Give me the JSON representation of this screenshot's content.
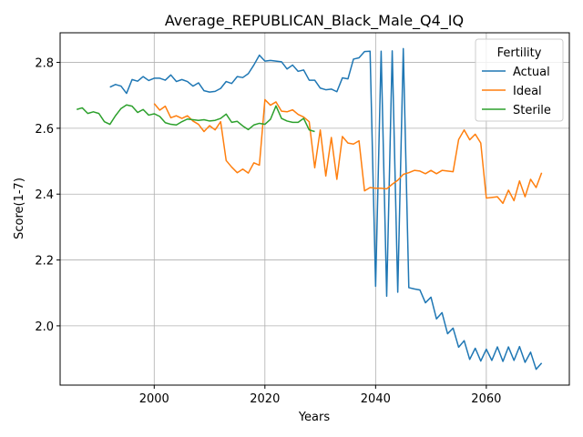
{
  "chart_data": {
    "type": "line",
    "title": "Average_REPUBLICAN_Black_Male_Q4_IQ",
    "xlabel": "Years",
    "ylabel": "Score(1-7)",
    "xlim": [
      1983,
      2075
    ],
    "ylim": [
      1.82,
      2.89
    ],
    "xticks": [
      2000,
      2020,
      2040,
      2060
    ],
    "yticks": [
      2.0,
      2.2,
      2.4,
      2.6,
      2.8
    ],
    "ytick_labels": [
      "2.0",
      "2.2",
      "2.4",
      "2.6",
      "2.8"
    ],
    "grid": true,
    "legend": {
      "title": "Fertility",
      "position": "top-right"
    },
    "series": [
      {
        "name": "Actual",
        "color": "#1f77b4",
        "x": [
          1992,
          1993,
          1994,
          1995,
          1996,
          1997,
          1998,
          1999,
          2000,
          2001,
          2002,
          2003,
          2004,
          2005,
          2006,
          2007,
          2008,
          2009,
          2010,
          2011,
          2012,
          2013,
          2014,
          2015,
          2016,
          2017,
          2018,
          2019,
          2020,
          2021,
          2022,
          2023,
          2024,
          2025,
          2026,
          2027,
          2028,
          2029,
          2030,
          2031,
          2032,
          2033,
          2034,
          2035,
          2036,
          2037,
          2038,
          2039,
          2040,
          2041,
          2042,
          2043,
          2044,
          2045,
          2046,
          2047,
          2048,
          2049,
          2050,
          2051,
          2052,
          2053,
          2054,
          2055,
          2056,
          2057,
          2058,
          2059,
          2060,
          2061,
          2062,
          2063,
          2064,
          2065,
          2066,
          2067,
          2068,
          2069,
          2070
        ],
        "values": [
          2.725,
          2.733,
          2.728,
          2.706,
          2.748,
          2.743,
          2.757,
          2.745,
          2.752,
          2.752,
          2.746,
          2.762,
          2.742,
          2.748,
          2.742,
          2.728,
          2.738,
          2.714,
          2.71,
          2.712,
          2.721,
          2.742,
          2.736,
          2.757,
          2.754,
          2.766,
          2.792,
          2.822,
          2.804,
          2.806,
          2.804,
          2.802,
          2.78,
          2.792,
          2.773,
          2.777,
          2.746,
          2.746,
          2.722,
          2.717,
          2.719,
          2.711,
          2.753,
          2.75,
          2.81,
          2.814,
          2.833,
          2.834,
          2.12,
          2.834,
          2.09,
          2.835,
          2.102,
          2.842,
          2.116,
          2.112,
          2.109,
          2.07,
          2.087,
          2.021,
          2.04,
          1.976,
          1.993,
          1.935,
          1.955,
          1.898,
          1.932,
          1.893,
          1.929,
          1.895,
          1.936,
          1.892,
          1.936,
          1.895,
          1.937,
          1.889,
          1.92,
          1.868,
          1.887
        ]
      },
      {
        "name": "Ideal",
        "color": "#ff7f0e",
        "x": [
          2000,
          2001,
          2002,
          2003,
          2004,
          2005,
          2006,
          2007,
          2008,
          2009,
          2010,
          2011,
          2012,
          2013,
          2014,
          2015,
          2016,
          2017,
          2018,
          2019,
          2020,
          2021,
          2022,
          2023,
          2024,
          2025,
          2026,
          2027,
          2028,
          2029,
          2030,
          2031,
          2032,
          2033,
          2034,
          2035,
          2036,
          2037,
          2038,
          2039,
          2040,
          2041,
          2042,
          2043,
          2044,
          2045,
          2046,
          2047,
          2048,
          2049,
          2050,
          2051,
          2052,
          2053,
          2054,
          2055,
          2056,
          2057,
          2058,
          2059,
          2060,
          2061,
          2062,
          2063,
          2064,
          2065,
          2066,
          2067,
          2068,
          2069,
          2070
        ],
        "values": [
          2.675,
          2.655,
          2.667,
          2.632,
          2.638,
          2.63,
          2.638,
          2.622,
          2.612,
          2.59,
          2.608,
          2.595,
          2.62,
          2.502,
          2.482,
          2.465,
          2.476,
          2.464,
          2.495,
          2.488,
          2.687,
          2.67,
          2.68,
          2.652,
          2.65,
          2.656,
          2.642,
          2.634,
          2.62,
          2.48,
          2.595,
          2.455,
          2.572,
          2.445,
          2.575,
          2.555,
          2.552,
          2.562,
          2.41,
          2.42,
          2.418,
          2.418,
          2.416,
          2.43,
          2.442,
          2.46,
          2.465,
          2.472,
          2.47,
          2.462,
          2.472,
          2.462,
          2.472,
          2.47,
          2.468,
          2.566,
          2.595,
          2.565,
          2.582,
          2.555,
          2.388,
          2.39,
          2.392,
          2.372,
          2.412,
          2.38,
          2.44,
          2.392,
          2.445,
          2.42,
          2.465
        ]
      },
      {
        "name": "Sterile",
        "color": "#2ca02c",
        "x": [
          1986,
          1987,
          1988,
          1989,
          1990,
          1991,
          1992,
          1993,
          1994,
          1995,
          1996,
          1997,
          1998,
          1999,
          2000,
          2001,
          2002,
          2003,
          2004,
          2005,
          2006,
          2007,
          2008,
          2009,
          2010,
          2011,
          2012,
          2013,
          2014,
          2015,
          2016,
          2017,
          2018,
          2019,
          2020,
          2021,
          2022,
          2023,
          2024,
          2025,
          2026,
          2027,
          2028,
          2029
        ],
        "values": [
          2.657,
          2.662,
          2.645,
          2.65,
          2.645,
          2.62,
          2.612,
          2.638,
          2.66,
          2.671,
          2.667,
          2.648,
          2.657,
          2.64,
          2.644,
          2.636,
          2.617,
          2.612,
          2.61,
          2.62,
          2.628,
          2.626,
          2.624,
          2.626,
          2.622,
          2.624,
          2.63,
          2.643,
          2.618,
          2.621,
          2.607,
          2.596,
          2.61,
          2.615,
          2.612,
          2.627,
          2.668,
          2.63,
          2.622,
          2.618,
          2.618,
          2.63,
          2.595,
          2.59
        ]
      }
    ]
  }
}
